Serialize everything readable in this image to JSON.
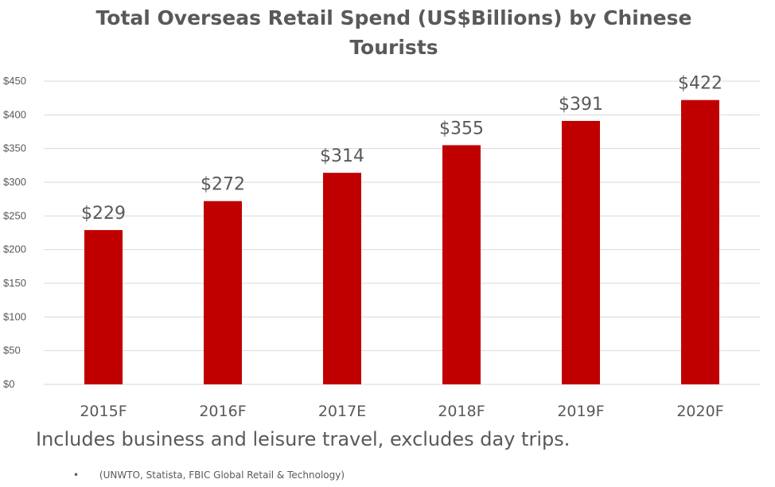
{
  "chart_data": {
    "type": "bar",
    "title": "Total Overseas Retail Spend (US$Billions) by Chinese Tourists",
    "categories": [
      "2015F",
      "2016F",
      "2017E",
      "2018F",
      "2019F",
      "2020F"
    ],
    "values": [
      229,
      272,
      314,
      355,
      391,
      422
    ],
    "data_labels": [
      "$229",
      "$272",
      "$314",
      "$355",
      "$391",
      "$422"
    ],
    "y_ticks": [
      0,
      50,
      100,
      150,
      200,
      250,
      300,
      350,
      400,
      450
    ],
    "y_tick_labels": [
      "$0",
      "$50",
      "$100",
      "$150",
      "$200",
      "$250",
      "$300",
      "$350",
      "$400",
      "$450"
    ],
    "ylim": [
      0,
      450
    ],
    "xlabel": "",
    "ylabel": "",
    "grid": true,
    "legend": "none",
    "bar_color": "#c00000",
    "grid_color": "#d9d9d9"
  },
  "footer": {
    "note": "Includes business and leisure travel, excludes day trips.",
    "source_bullet": "•",
    "source": "(UNWTO, Statista, FBIC Global Retail & Technology)"
  }
}
